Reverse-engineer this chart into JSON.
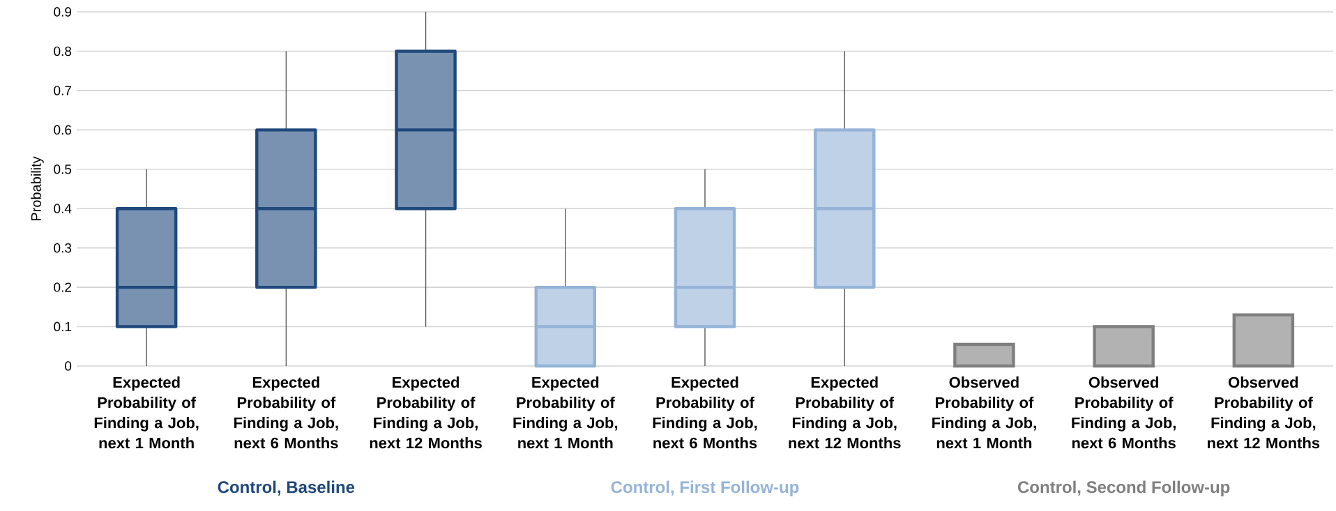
{
  "chart_data": {
    "type": "box",
    "ylabel": "Probability",
    "categories": [
      "Expected Probability of Finding a Job, next 1 Month",
      "Expected Probability of Finding a Job, next 6 Months",
      "Expected Probability of Finding a Job, next 12 Months",
      "Expected Probability of Finding a Job, next 1 Month",
      "Expected Probability of Finding a Job, next 6 Months",
      "Expected Probability of Finding a Job, next 12 Months",
      "Observed Probability of Finding a Job, next 1 Month",
      "Observed Probability of Finding a Job, next 6 Months",
      "Observed Probability of Finding a Job, next 12 Months"
    ],
    "series": [
      {
        "name": "Control, Baseline",
        "color": "#1f497d",
        "boxes": [
          {
            "low": 0,
            "q1": 0.1,
            "median": 0.2,
            "q3": 0.4,
            "high": 0.5
          },
          {
            "low": 0,
            "q1": 0.2,
            "median": 0.4,
            "q3": 0.6,
            "high": 0.8
          },
          {
            "low": 0.1,
            "q1": 0.4,
            "median": 0.6,
            "q3": 0.8,
            "high": 0.9
          },
          null,
          null,
          null,
          null,
          null,
          null
        ]
      },
      {
        "name": "Control, First Follow-up",
        "color": "#95b3d7",
        "boxes": [
          null,
          null,
          null,
          {
            "low": 0,
            "q1": 0,
            "median": 0.1,
            "q3": 0.2,
            "high": 0.4
          },
          {
            "low": 0,
            "q1": 0.1,
            "median": 0.2,
            "q3": 0.4,
            "high": 0.5
          },
          {
            "low": 0,
            "q1": 0.2,
            "median": 0.4,
            "q3": 0.6,
            "high": 0.8
          },
          null,
          null,
          null
        ]
      },
      {
        "type": "bar",
        "name": "Control, Second Follow-up",
        "color": "#7f7f7f",
        "values": [
          null,
          null,
          null,
          null,
          null,
          null,
          0.055,
          0.1,
          0.13
        ]
      }
    ],
    "ylim": [
      0,
      0.9
    ],
    "yticks": [
      0,
      0.1,
      0.2,
      0.3,
      0.4,
      0.5,
      0.6,
      0.7,
      0.8,
      0.9
    ],
    "grid": "y"
  }
}
